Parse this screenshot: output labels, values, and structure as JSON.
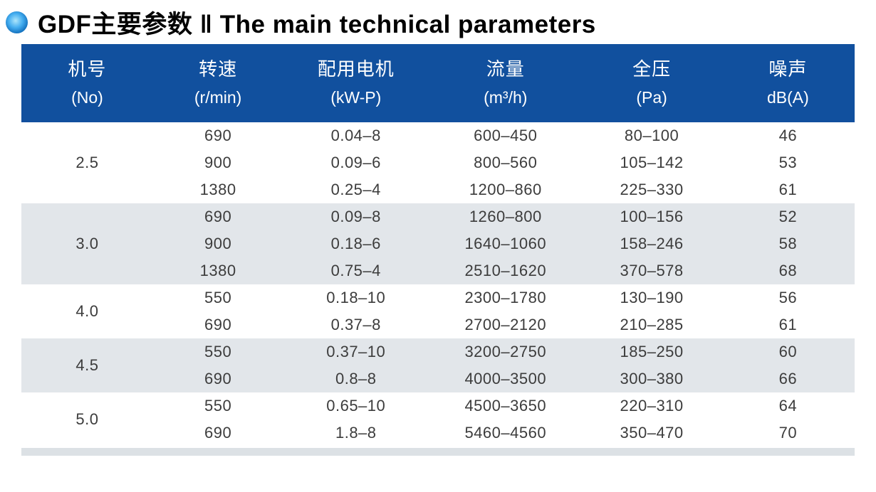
{
  "title": {
    "text": "GDF主要参数 ‖ The main technical parameters"
  },
  "colors": {
    "header_blue": "#11509e",
    "group_gray": "#e2e6ea",
    "strip_gray": "#dce1e5",
    "body_text": "#3c3c3c",
    "bullet_blue": "#0b67b6"
  },
  "icons": {
    "bullet": "blue-sphere-bullet-icon"
  },
  "table": {
    "columns": [
      {
        "cn": "机号",
        "sub": "(No)"
      },
      {
        "cn": "转速",
        "sub": "(r/min)"
      },
      {
        "cn": "配用电机",
        "sub": "(kW-P)"
      },
      {
        "cn": "流量",
        "sub": "(m³/h)"
      },
      {
        "cn": "全压",
        "sub": "(Pa)"
      },
      {
        "cn": "噪声",
        "sub": "dB(A)"
      }
    ],
    "groups": [
      {
        "no": "2.5",
        "rows": [
          [
            "690",
            "0.04–8",
            "600–450",
            "80–100",
            "46"
          ],
          [
            "900",
            "0.09–6",
            "800–560",
            "105–142",
            "53"
          ],
          [
            "1380",
            "0.25–4",
            "1200–860",
            "225–330",
            "61"
          ]
        ]
      },
      {
        "no": "3.0",
        "rows": [
          [
            "690",
            "0.09–8",
            "1260–800",
            "100–156",
            "52"
          ],
          [
            "900",
            "0.18–6",
            "1640–1060",
            "158–246",
            "58"
          ],
          [
            "1380",
            "0.75–4",
            "2510–1620",
            "370–578",
            "68"
          ]
        ]
      },
      {
        "no": "4.0",
        "rows": [
          [
            "550",
            "0.18–10",
            "2300–1780",
            "130–190",
            "56"
          ],
          [
            "690",
            "0.37–8",
            "2700–2120",
            "210–285",
            "61"
          ]
        ]
      },
      {
        "no": "4.5",
        "rows": [
          [
            "550",
            "0.37–10",
            "3200–2750",
            "185–250",
            "60"
          ],
          [
            "690",
            "0.8–8",
            "4000–3500",
            "300–380",
            "66"
          ]
        ]
      },
      {
        "no": "5.0",
        "rows": [
          [
            "550",
            "0.65–10",
            "4500–3650",
            "220–310",
            "64"
          ],
          [
            "690",
            "1.8–8",
            "5460–4560",
            "350–470",
            "70"
          ]
        ]
      }
    ]
  }
}
